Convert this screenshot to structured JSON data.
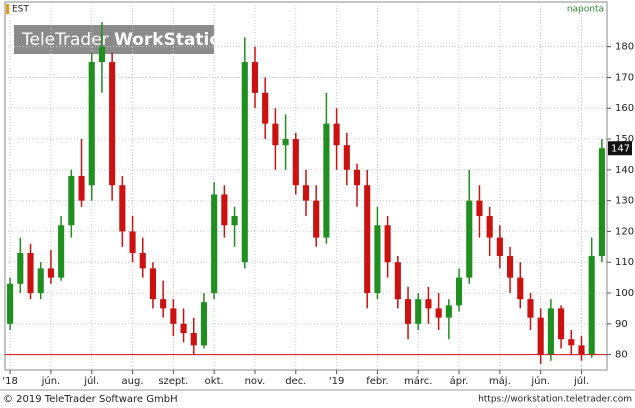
{
  "chart_data": {
    "type": "candlestick",
    "title": "EST",
    "interval": "naponta",
    "watermark": [
      "TeleTrader ",
      "WorkStation"
    ],
    "footer_left": "© 2019 TeleTrader Software GmbH",
    "footer_right": "https://workstation.teletrader.com",
    "categories": [
      "'18",
      null,
      null,
      null,
      "jún.",
      null,
      null,
      null,
      "júl.",
      null,
      null,
      null,
      "aug.",
      null,
      null,
      null,
      "szept.",
      null,
      null,
      null,
      "okt.",
      null,
      null,
      null,
      "nov.",
      null,
      null,
      null,
      "dec.",
      null,
      null,
      null,
      "'19",
      null,
      null,
      null,
      "febr.",
      null,
      null,
      null,
      "márc.",
      null,
      null,
      null,
      "ápr.",
      null,
      null,
      null,
      "máj.",
      null,
      null,
      null,
      "jún.",
      null,
      null,
      null,
      "júl.",
      null,
      null
    ],
    "open": [
      90,
      103,
      113,
      100,
      108,
      105,
      122,
      138,
      135,
      175,
      175,
      135,
      120,
      113,
      108,
      98,
      95,
      90,
      87,
      83,
      100,
      132,
      122,
      110,
      175,
      165,
      155,
      148,
      150,
      135,
      130,
      118,
      155,
      148,
      140,
      135,
      100,
      122,
      110,
      98,
      90,
      98,
      95,
      92,
      96,
      105,
      130,
      125,
      118,
      112,
      105,
      98,
      92,
      80,
      95,
      85,
      83,
      80,
      112
    ],
    "high": [
      105,
      118,
      116,
      110,
      114,
      125,
      140,
      150,
      178,
      188,
      178,
      138,
      125,
      118,
      110,
      104,
      98,
      95,
      92,
      100,
      136,
      135,
      128,
      183,
      180,
      170,
      160,
      158,
      152,
      140,
      135,
      165,
      160,
      152,
      142,
      140,
      128,
      125,
      112,
      102,
      100,
      102,
      100,
      98,
      108,
      140,
      135,
      128,
      122,
      115,
      110,
      100,
      95,
      98,
      96,
      88,
      86,
      118,
      150
    ],
    "low": [
      88,
      100,
      98,
      98,
      103,
      104,
      118,
      128,
      130,
      165,
      130,
      115,
      110,
      105,
      95,
      92,
      86,
      84,
      80,
      82,
      98,
      118,
      115,
      108,
      160,
      150,
      140,
      140,
      132,
      125,
      115,
      116,
      140,
      135,
      128,
      95,
      98,
      105,
      95,
      85,
      88,
      90,
      88,
      85,
      94,
      103,
      118,
      112,
      108,
      100,
      95,
      88,
      77,
      78,
      82,
      80,
      78,
      79,
      110
    ],
    "close": [
      103,
      113,
      100,
      108,
      105,
      122,
      138,
      130,
      175,
      180,
      135,
      120,
      113,
      108,
      98,
      95,
      90,
      87,
      83,
      97,
      132,
      122,
      125,
      175,
      165,
      155,
      148,
      150,
      135,
      130,
      118,
      155,
      148,
      140,
      135,
      100,
      122,
      110,
      98,
      90,
      98,
      95,
      92,
      96,
      105,
      130,
      125,
      118,
      112,
      105,
      98,
      92,
      80,
      95,
      85,
      83,
      80,
      112,
      147
    ],
    "up_color": "#1f8f1f",
    "down_color": "#cc1111",
    "support_line": 80,
    "last_value": 147,
    "ylim": [
      75,
      194.5
    ],
    "yticks": [
      80,
      90,
      100,
      110,
      120,
      130,
      140,
      150,
      160,
      170,
      180
    ],
    "grid": true
  }
}
